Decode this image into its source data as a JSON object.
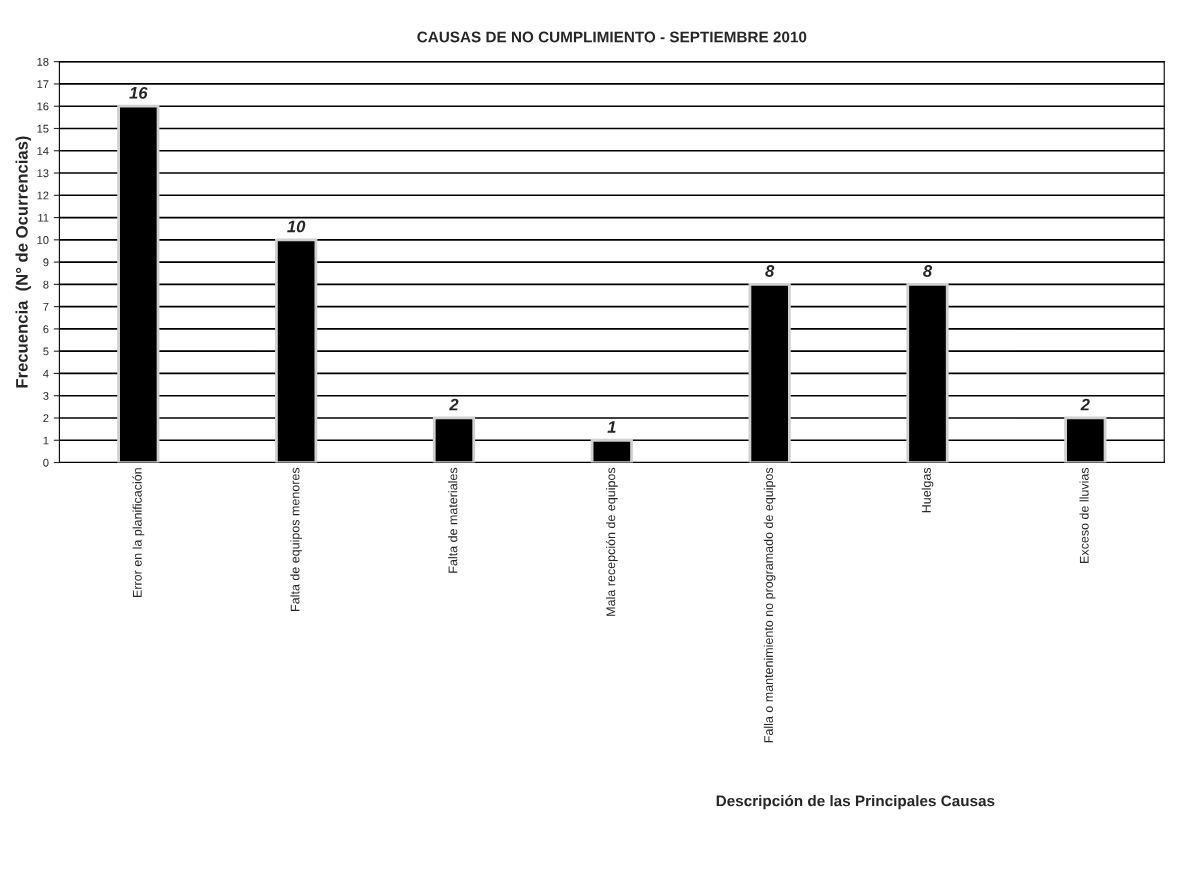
{
  "chart_data": {
    "type": "bar",
    "title": "CAUSAS DE NO CUMPLIMIENTO - SEPTIEMBRE 2010",
    "xlabel": "Descripción de las Principales Causas",
    "ylabel": "Frecuencia  (N° de Ocurrencias)",
    "categories": [
      "Error en la planificación",
      "Falta de equipos menores",
      "Falta de materiales",
      "Mala recepción de equipos",
      "Falla o mantenimiento no programado de equipos",
      "Huelgas",
      "Exceso de lluvias"
    ],
    "values": [
      16,
      10,
      2,
      1,
      8,
      8,
      2
    ],
    "color": "#000000",
    "ylim": [
      0,
      18
    ],
    "yticks": [
      0,
      1,
      2,
      3,
      4,
      5,
      6,
      7,
      8,
      9,
      10,
      11,
      12,
      13,
      14,
      15,
      16,
      17,
      18
    ],
    "grid": "y",
    "data_labels": true
  }
}
